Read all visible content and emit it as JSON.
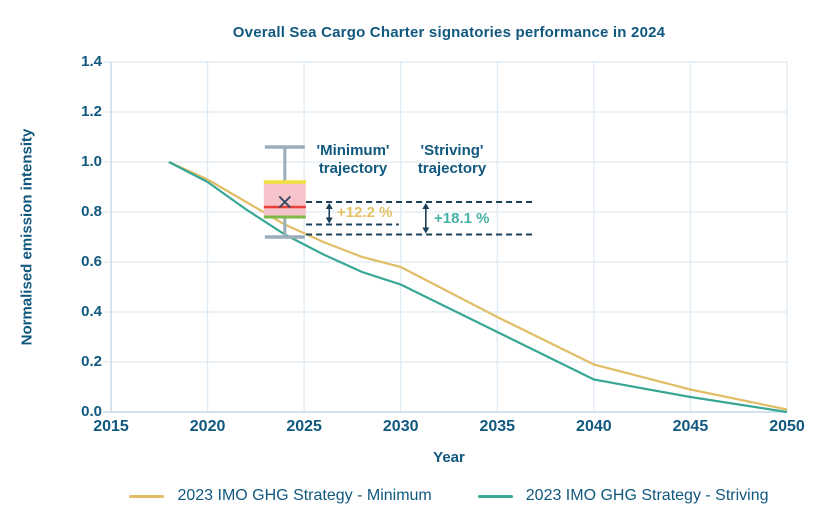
{
  "title": "Overall Sea Cargo Charter signatories performance in 2024",
  "axes": {
    "x_label": "Year",
    "y_label": "Normalised emission intensity",
    "x_ticks": [
      "2015",
      "2020",
      "2025",
      "2030",
      "2035",
      "2040",
      "2045",
      "2050"
    ],
    "y_ticks": [
      "0.0",
      "0.2",
      "0.4",
      "0.6",
      "0.8",
      "1.0",
      "1.2",
      "1.4"
    ]
  },
  "annotations": {
    "minimum_trajectory": "'Minimum' trajectory",
    "striving_trajectory": "'Striving' trajectory",
    "pct_vs_minimum": "+12.2 %",
    "pct_vs_striving": "+18.1 %"
  },
  "legend": {
    "items": [
      {
        "label": "2023 IMO GHG Strategy - Minimum",
        "color": "#e2bd67"
      },
      {
        "label": "2023 IMO GHG Strategy - Striving",
        "color": "#38a795"
      }
    ]
  },
  "colors": {
    "text_blue": "#11587f",
    "navy": "#1a4159",
    "grid": "#dde9f3",
    "axis": "#c7dbea",
    "gold": "#e2bd67",
    "teal": "#38a795",
    "gold_text": "#e3c164",
    "teal_text": "#46b1a4",
    "background": "#ffffff"
  },
  "chart_data": {
    "type": "line",
    "title": "Overall Sea Cargo Charter signatories performance in 2024",
    "xlabel": "Year",
    "ylabel": "Normalised emission intensity",
    "xlim": [
      2015,
      2050
    ],
    "ylim": [
      0,
      1.4
    ],
    "x_tick_step": 5,
    "y_tick_step": 0.2,
    "grid": true,
    "legend_position": "bottom",
    "series": [
      {
        "name": "2023 IMO GHG Strategy - Minimum",
        "color": "#e2bd67",
        "points": [
          [
            2018,
            1.0
          ],
          [
            2020,
            0.93
          ],
          [
            2022,
            0.84
          ],
          [
            2024,
            0.75
          ],
          [
            2026,
            0.68
          ],
          [
            2028,
            0.62
          ],
          [
            2030,
            0.58
          ],
          [
            2035,
            0.38
          ],
          [
            2040,
            0.19
          ],
          [
            2045,
            0.09
          ],
          [
            2050,
            0.01
          ]
        ]
      },
      {
        "name": "2023 IMO GHG Strategy - Striving",
        "color": "#38a795",
        "points": [
          [
            2018,
            1.0
          ],
          [
            2020,
            0.92
          ],
          [
            2022,
            0.81
          ],
          [
            2024,
            0.71
          ],
          [
            2026,
            0.63
          ],
          [
            2028,
            0.56
          ],
          [
            2030,
            0.51
          ],
          [
            2035,
            0.32
          ],
          [
            2040,
            0.13
          ],
          [
            2045,
            0.06
          ],
          [
            2050,
            0.0
          ]
        ]
      }
    ],
    "boxplot_2024": {
      "year": 2024,
      "whisker_low": 0.7,
      "q1": 0.78,
      "median": 0.82,
      "mean": 0.84,
      "q3": 0.92,
      "whisker_high": 1.06,
      "colors": {
        "fill": "#f7c3cb",
        "top_edge": "#f1e13d",
        "bottom_edge": "#7cba45",
        "median": "#e93f3b",
        "whisker": "#9badbb",
        "mean_marker": "#2d4a63"
      }
    },
    "reference_dashed_lines": [
      {
        "value": 0.84,
        "from_year": 2025.1,
        "to_year": 2036.8
      },
      {
        "value": 0.75,
        "from_year": 2025.1,
        "to_year": 2029.9
      },
      {
        "value": 0.71,
        "from_year": 2025.1,
        "to_year": 2036.8
      }
    ],
    "difference_arrows": [
      {
        "x_year": 2026.3,
        "from_value": 0.84,
        "to_value": 0.75,
        "label": "+12.2 %",
        "color": "#e3c164"
      },
      {
        "x_year": 2031.3,
        "from_value": 0.84,
        "to_value": 0.71,
        "label": "+18.1 %",
        "color": "#46b1a4"
      }
    ]
  }
}
